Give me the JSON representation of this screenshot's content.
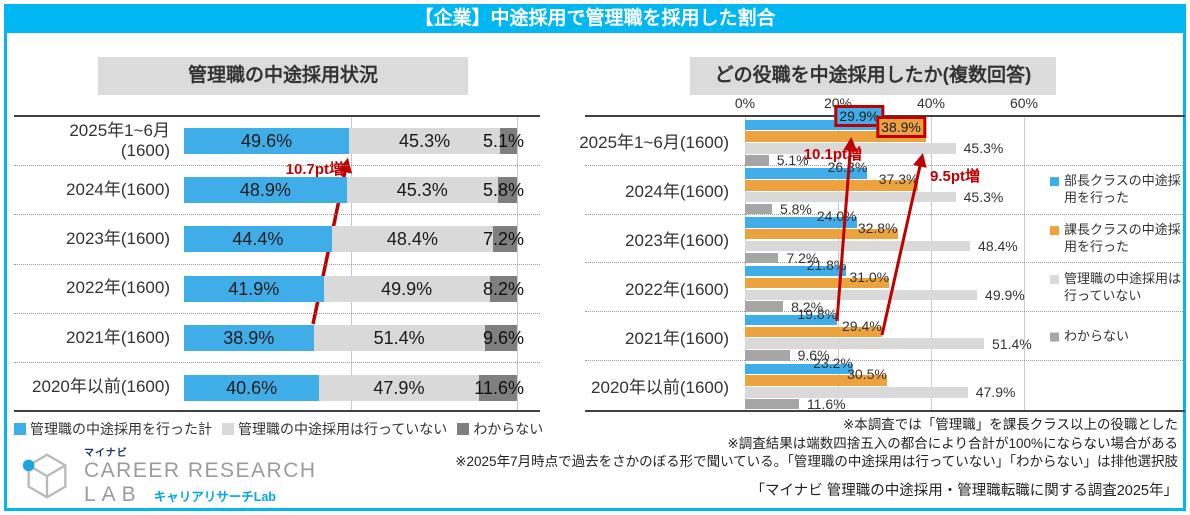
{
  "page": {
    "header_title": "【企業】中途採用で管理職を採用した割合",
    "accent_color": "#00B7F2"
  },
  "chart_data": [
    {
      "type": "bar",
      "layout": "horizontal-stacked",
      "title": "管理職の中途採用状況",
      "categories": [
        "2025年1~6月\n(1600)",
        "2024年(1600)",
        "2023年(1600)",
        "2022年(1600)",
        "2021年(1600)",
        "2020年以前(1600)"
      ],
      "series": [
        {
          "name": "管理職の中途採用を行った計",
          "color": "#3FAEE8",
          "values": [
            49.6,
            48.9,
            44.4,
            41.9,
            38.9,
            40.6
          ]
        },
        {
          "name": "管理職の中途採用は行っていない",
          "color": "#D9D9D9",
          "values": [
            45.3,
            45.3,
            48.4,
            49.9,
            51.4,
            47.9
          ]
        },
        {
          "name": "わからない",
          "color": "#7F7F7F",
          "values": [
            5.1,
            5.8,
            7.2,
            8.2,
            9.6,
            11.6
          ]
        }
      ],
      "xlim": [
        0,
        100
      ],
      "gridlines_pct": [
        50,
        100
      ],
      "annotation": {
        "text": "10.7pt増",
        "color": "#C00000",
        "from_category": 4,
        "to_category": 0,
        "series": 0
      },
      "legend_position": "bottom"
    },
    {
      "type": "bar",
      "layout": "horizontal-grouped",
      "title": "どの役職を中途採用したか(複数回答)",
      "x_ticks": [
        "0%",
        "20%",
        "40%",
        "60%"
      ],
      "x_tick_values": [
        0,
        20,
        40,
        60
      ],
      "xlim": [
        0,
        64.5
      ],
      "categories": [
        "2025年1~6月(1600)",
        "2024年(1600)",
        "2023年(1600)",
        "2022年(1600)",
        "2021年(1600)",
        "2020年以前(1600)"
      ],
      "series": [
        {
          "name": "部長クラスの中途採用を行った",
          "color": "#3FAEE8",
          "values": [
            29.9,
            26.3,
            24.0,
            21.8,
            19.8,
            23.2
          ]
        },
        {
          "name": "課長クラスの中途採用を行った",
          "color": "#EDA33D",
          "values": [
            38.9,
            37.3,
            32.8,
            31.0,
            29.4,
            30.5
          ]
        },
        {
          "name": "管理職の中途採用は行っていない",
          "color": "#D9D9D9",
          "values": [
            45.3,
            45.3,
            48.4,
            49.9,
            51.4,
            47.9
          ]
        },
        {
          "name": "わからない",
          "color": "#A6A6A6",
          "values": [
            5.1,
            5.8,
            7.2,
            8.2,
            9.6,
            11.6
          ]
        }
      ],
      "highlight_labels": [
        {
          "category": 0,
          "series": 0
        },
        {
          "category": 0,
          "series": 1
        }
      ],
      "annotations": [
        {
          "text": "10.1pt増",
          "color": "#C00000",
          "series": 0,
          "from_category": 4,
          "to_category": 0
        },
        {
          "text": "9.5pt増",
          "color": "#C00000",
          "series": 1,
          "from_category": 4,
          "to_category": 0
        }
      ],
      "legend_position": "right"
    }
  ],
  "notes": [
    "※本調査では「管理職」を課長クラス以上の役職とした",
    "※調査結果は端数四捨五入の都合により合計が100%にならない場合がある",
    "※2025年7月時点で過去をさかのぼる形で聞いている。「管理職の中途採用は行っていない」「わからない」は排他選択肢"
  ],
  "source": "「マイナビ 管理職の中途採用・管理職転職に関する調査2025年」",
  "logo": {
    "brand": "マイナビ",
    "line1": "CAREER RESEARCH",
    "line2": "LAB",
    "subtext": "キャリアリサーチLab"
  }
}
